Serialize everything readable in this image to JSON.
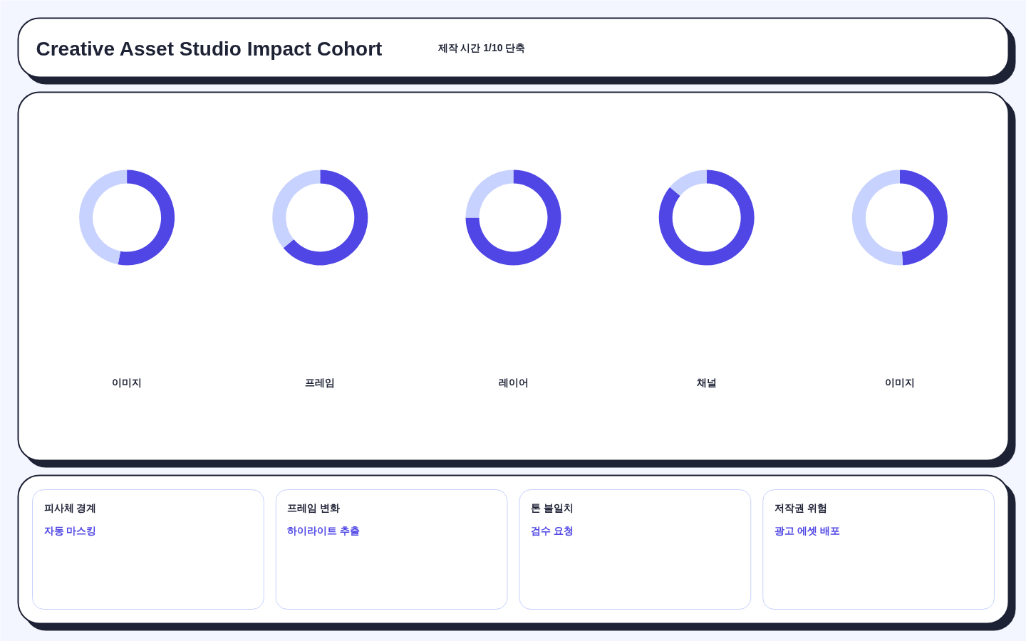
{
  "chart_data": [
    {
      "type": "other",
      "title": "Creative Asset Studio Impact Cohort",
      "subtitle": "제작 시간 1/10 단축"
    },
    {
      "type": "donut",
      "title": "이미지",
      "categories": [
        null,
        null
      ],
      "values": [
        53,
        47
      ],
      "colors": [
        "#4f46e5",
        "#c7d2fe"
      ]
    },
    {
      "type": "donut",
      "title": "프레임",
      "categories": [
        null,
        null
      ],
      "values": [
        64,
        36
      ],
      "colors": [
        "#4f46e5",
        "#c7d2fe"
      ]
    },
    {
      "type": "donut",
      "title": "레이어",
      "categories": [
        null,
        null
      ],
      "values": [
        75,
        25
      ],
      "colors": [
        "#4f46e5",
        "#c7d2fe"
      ]
    },
    {
      "type": "donut",
      "title": "채널",
      "categories": [
        null,
        null
      ],
      "values": [
        86,
        14
      ],
      "colors": [
        "#4f46e5",
        "#c7d2fe"
      ]
    },
    {
      "type": "donut",
      "title": "이미지",
      "categories": [
        null,
        null
      ],
      "values": [
        49,
        51
      ],
      "colors": [
        "#4f46e5",
        "#c7d2fe"
      ]
    },
    {
      "type": "other",
      "annotations": [
        "피사체 경계",
        "자동 마스킹",
        "프레임 변화",
        "하이라이트 추출",
        "톤 불일치",
        "검수 요청",
        "저작권 위험",
        "광고 에셋 배포"
      ]
    }
  ]
}
